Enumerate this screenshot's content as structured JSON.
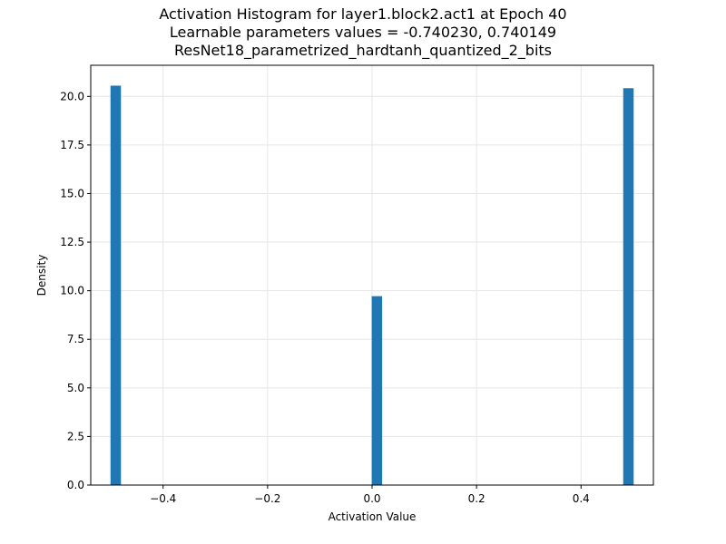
{
  "chart_data": {
    "type": "bar",
    "title_lines": [
      "Activation Histogram for layer1.block2.act1 at Epoch 40",
      "Learnable parameters values = -0.740230, 0.740149",
      "ResNet18_parametrized_hardtanh_quantized_2_bits"
    ],
    "xlabel": "Activation Value",
    "ylabel": "Density",
    "xlim": [
      -0.5385,
      0.5385
    ],
    "ylim": [
      0,
      21.6
    ],
    "xticks": [
      -0.4,
      -0.2,
      0.0,
      0.2,
      0.4
    ],
    "xtick_labels": [
      "−0.4",
      "−0.2",
      "0.0",
      "0.2",
      "0.4"
    ],
    "yticks": [
      0,
      2.5,
      5,
      7.5,
      10,
      12.5,
      15,
      17.5,
      20
    ],
    "ytick_labels": [
      "0.0",
      "2.5",
      "5.0",
      "7.5",
      "10.0",
      "12.5",
      "15.0",
      "17.5",
      "20.0"
    ],
    "grid": true,
    "bar_color": "#1f77b4",
    "bar_width": 0.02,
    "bars": [
      {
        "x": -0.4907,
        "value": 20.55
      },
      {
        "x": 0.0093,
        "value": 9.72
      },
      {
        "x": 0.4907,
        "value": 20.42
      }
    ]
  }
}
